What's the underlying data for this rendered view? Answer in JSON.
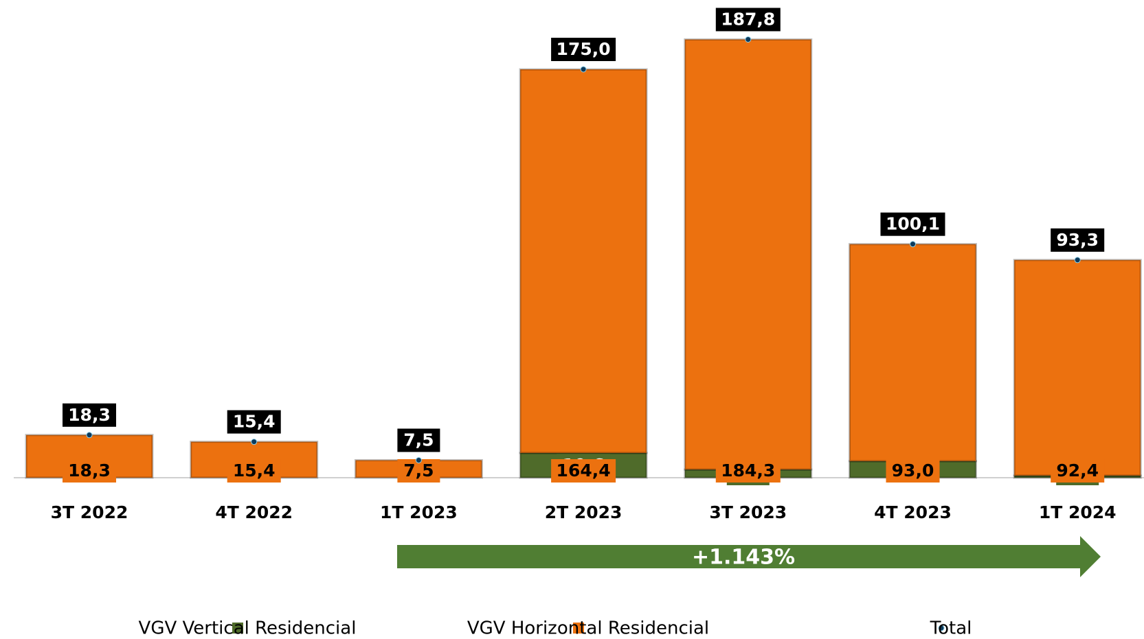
{
  "chart_data": {
    "type": "stacked_bar",
    "categories": [
      "3T 2022",
      "4T 2022",
      "1T 2023",
      "2T 2023",
      "3T 2023",
      "4T 2023",
      "1T 2024"
    ],
    "series": [
      {
        "name": "VGV Vertical Residencial",
        "color": "#4f6b2a",
        "values": [
          0,
          0,
          0,
          10.6,
          3.5,
          7.1,
          0.9
        ],
        "value_labels": [
          null,
          null,
          null,
          "10,6",
          "3,5",
          "7,1",
          "0,9"
        ]
      },
      {
        "name": "VGV Horizontal Residencial",
        "color": "#ec710f",
        "values": [
          18.3,
          15.4,
          7.5,
          164.4,
          184.3,
          93.0,
          92.4
        ],
        "value_labels": [
          "18,3",
          "15,4",
          "7,5",
          "164,4",
          "184,3",
          "93,0",
          "92,4"
        ]
      },
      {
        "name": "Total",
        "color": "#0d3a5c",
        "values": [
          18.3,
          15.4,
          7.5,
          175.0,
          187.8,
          100.1,
          93.3
        ],
        "value_labels": [
          "18,3",
          "15,4",
          "7,5",
          "175,0",
          "187,8",
          "100,1",
          "93,3"
        ]
      }
    ],
    "annotation": "+1.143%"
  }
}
